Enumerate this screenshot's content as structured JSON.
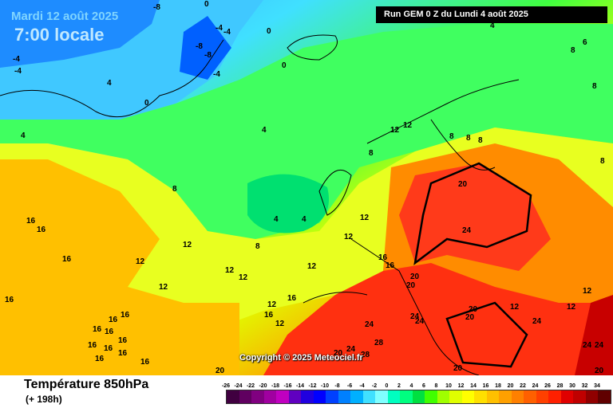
{
  "header": {
    "date_label": "Mardi 12 août 2025",
    "time_label": "7:00 locale",
    "run_label": "Run GEM 0 Z du Lundi 4 août 2025"
  },
  "copyright": "Copyright © 2025 Meteociel.fr",
  "footer": {
    "variable": "Température 850hPa",
    "lead_time": "(+ 198h)"
  },
  "legend": {
    "ticks": [
      "-26",
      "-24",
      "-22",
      "-20",
      "-18",
      "-16",
      "-14",
      "-12",
      "-10",
      "-8",
      "-6",
      "-4",
      "-2",
      "0",
      "2",
      "4",
      "6",
      "8",
      "10",
      "12",
      "14",
      "16",
      "18",
      "20",
      "22",
      "24",
      "26",
      "28",
      "30",
      "32",
      "34"
    ],
    "colors": [
      "#400040",
      "#600060",
      "#800080",
      "#a000a0",
      "#c000c0",
      "#6000c0",
      "#2000e0",
      "#0000ff",
      "#0040ff",
      "#0080ff",
      "#00b0ff",
      "#40e0ff",
      "#80ffff",
      "#00ffc0",
      "#00ff80",
      "#00e040",
      "#40ff00",
      "#a0ff00",
      "#e0ff00",
      "#ffff00",
      "#ffe000",
      "#ffc000",
      "#ffa000",
      "#ff8000",
      "#ff6000",
      "#ff4000",
      "#ff2000",
      "#e00000",
      "#c00000",
      "#900000",
      "#600000"
    ]
  },
  "isotherm_labels": [
    {
      "t": "-8"
    },
    {
      "t": "0"
    },
    {
      "t": "-4"
    },
    {
      "t": "-4"
    },
    {
      "t": "-4"
    },
    {
      "t": "-4"
    },
    {
      "t": "-8"
    },
    {
      "t": "-8"
    },
    {
      "t": "-4"
    },
    {
      "t": "0"
    },
    {
      "t": "0"
    },
    {
      "t": "4"
    },
    {
      "t": "8"
    },
    {
      "t": "6"
    },
    {
      "t": "8"
    },
    {
      "t": "0"
    },
    {
      "t": "4"
    },
    {
      "t": "4"
    },
    {
      "t": "12"
    },
    {
      "t": "12"
    },
    {
      "t": "8"
    },
    {
      "t": "8"
    },
    {
      "t": "8"
    },
    {
      "t": "8"
    },
    {
      "t": "8"
    },
    {
      "t": "8"
    },
    {
      "t": "20"
    },
    {
      "t": "24"
    },
    {
      "t": "4"
    },
    {
      "t": "4"
    },
    {
      "t": "4"
    },
    {
      "t": "12"
    },
    {
      "t": "12"
    },
    {
      "t": "16"
    },
    {
      "t": "16"
    },
    {
      "t": "12"
    },
    {
      "t": "16"
    },
    {
      "t": "16"
    },
    {
      "t": "12"
    },
    {
      "t": "12"
    },
    {
      "t": "12"
    },
    {
      "t": "8"
    },
    {
      "t": "12"
    },
    {
      "t": "12"
    },
    {
      "t": "16"
    },
    {
      "t": "16"
    },
    {
      "t": "20"
    },
    {
      "t": "20"
    },
    {
      "t": "20"
    },
    {
      "t": "24"
    },
    {
      "t": "24"
    },
    {
      "t": "20"
    },
    {
      "t": "12"
    },
    {
      "t": "12"
    },
    {
      "t": "12"
    },
    {
      "t": "24"
    },
    {
      "t": "20"
    },
    {
      "t": "24"
    },
    {
      "t": "24"
    },
    {
      "t": "28"
    },
    {
      "t": "20"
    },
    {
      "t": "24"
    },
    {
      "t": "28"
    },
    {
      "t": "24"
    },
    {
      "t": "20"
    },
    {
      "t": "20"
    },
    {
      "t": "16"
    },
    {
      "t": "16"
    },
    {
      "t": "16"
    },
    {
      "t": "16"
    },
    {
      "t": "16"
    },
    {
      "t": "16"
    },
    {
      "t": "16"
    },
    {
      "t": "16"
    },
    {
      "t": "16"
    },
    {
      "t": "16"
    },
    {
      "t": "12"
    },
    {
      "t": "12"
    },
    {
      "t": "16"
    },
    {
      "t": "16"
    }
  ]
}
